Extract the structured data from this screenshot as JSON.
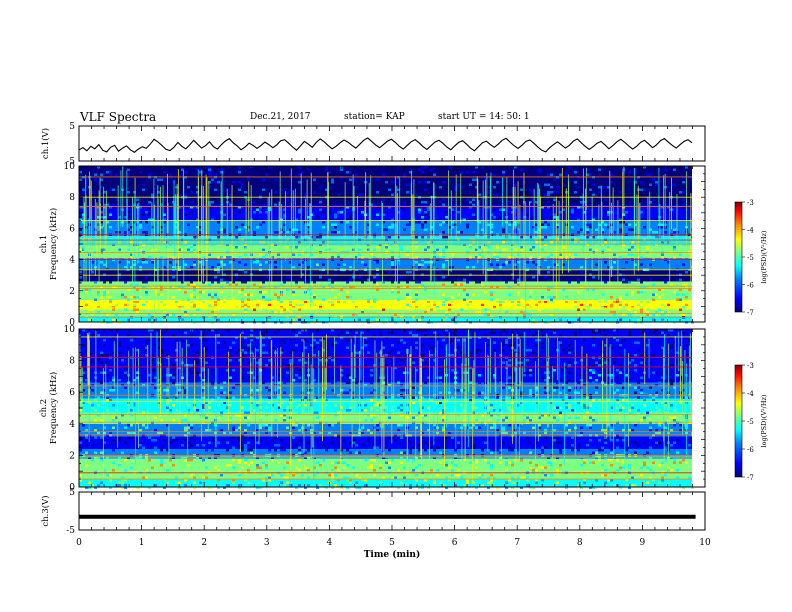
{
  "header": {
    "title": "VLF Spectra",
    "date": "Dec.21, 2017",
    "station": "station= KAP",
    "start": "start  UT =   14: 50: 1"
  },
  "chart_data": [
    {
      "type": "line",
      "panel": "ch1-waveform",
      "ylabel": "ch.1(V)",
      "ylim": [
        -5,
        5
      ],
      "yticks": [
        "5",
        "-5"
      ],
      "xlim": [
        0,
        10
      ],
      "series": [
        {
          "values": [
            -1.8,
            -1.2,
            -2.1,
            -0.8,
            -1.5,
            -0.3,
            -1.9,
            -2.4,
            -1.1,
            -0.5,
            -2.2,
            -1.3,
            -0.7,
            -1.8,
            -2.5,
            -1.6,
            -0.9,
            -1.4,
            -0.2,
            1.2,
            0.4,
            -0.6,
            -1.7,
            -2.0,
            -1.1,
            0.3,
            -0.8,
            -1.5,
            -0.4,
            0.9,
            -0.2,
            -1.3,
            -0.6,
            0.5,
            -0.9,
            -1.6,
            -0.3,
            0.7,
            1.4,
            0.2,
            -0.7,
            -1.8,
            -1.0,
            0.1,
            -0.5,
            -1.4,
            -0.6,
            0.4,
            -0.3,
            -1.2,
            -0.4,
            0.8,
            1.1,
            0.1,
            -1.0,
            -1.9,
            -0.7,
            0.6,
            -0.2,
            -1.1,
            0.3,
            1.3,
            0.5,
            -0.6,
            -1.5,
            -0.8,
            0.2,
            1.0,
            0.4,
            -0.5,
            -1.3,
            -0.2,
            0.9,
            1.6,
            0.6,
            -0.4,
            -1.2,
            -0.3,
            0.7,
            1.2,
            0.3,
            -0.8,
            -1.6,
            -0.5,
            0.5,
            1.1,
            0.2,
            -0.9,
            -1.7,
            -0.6,
            0.4,
            0.9,
            0.1,
            -1.0,
            -1.8,
            -0.7,
            0.3,
            0.8,
            -0.2,
            -1.3,
            -2.1,
            -0.9,
            0.2,
            0.7,
            -0.3,
            -1.1,
            -0.2,
            0.9,
            1.5,
            0.4,
            -0.6,
            -1.4,
            -0.5,
            0.6,
            1.0,
            0.1,
            -1.0,
            -1.9,
            -2.4,
            -1.2,
            -0.3,
            0.5,
            -0.4,
            -1.3,
            -0.5,
            0.7,
            1.3,
            0.2,
            -0.8,
            -1.7,
            -0.9,
            0.1,
            0.6,
            -0.4,
            -1.5,
            -0.6,
            0.5,
            1.2,
            0.3,
            -0.7,
            -1.6,
            -0.8,
            0.3,
            0.9,
            -0.1,
            -1.2,
            -0.4,
            0.8,
            1.4,
            0.4,
            -0.5,
            -1.3,
            -0.3,
            0.6,
            1.1,
            0.2
          ]
        }
      ]
    },
    {
      "type": "heatmap",
      "panel": "ch1-spectrogram",
      "ylabel": "ch.1\nFrequency  (kHz)",
      "ylim": [
        0,
        10
      ],
      "xlim": [
        0,
        10
      ],
      "yticks": [
        "0",
        "2",
        "4",
        "6",
        "8",
        "10"
      ],
      "colorbar": {
        "label": "log(PSD)(V²/Hz)",
        "range": [
          -7,
          -3
        ],
        "ticks": [
          "-3",
          "-4",
          "-5",
          "-6",
          "-7"
        ]
      },
      "bands": [
        {
          "from": 0.0,
          "to": 0.4,
          "level": -5.4
        },
        {
          "from": 0.4,
          "to": 0.8,
          "level": -4.9
        },
        {
          "from": 0.8,
          "to": 1.4,
          "level": -4.6
        },
        {
          "from": 1.4,
          "to": 2.0,
          "level": -5.0
        },
        {
          "from": 2.0,
          "to": 2.6,
          "level": -4.8
        },
        {
          "from": 2.6,
          "to": 3.4,
          "level": -6.6
        },
        {
          "from": 3.4,
          "to": 4.1,
          "level": -5.9
        },
        {
          "from": 4.1,
          "to": 4.9,
          "level": -5.2
        },
        {
          "from": 4.9,
          "to": 5.5,
          "level": -5.3
        },
        {
          "from": 5.5,
          "to": 6.5,
          "level": -6.1
        },
        {
          "from": 6.5,
          "to": 7.5,
          "level": -6.3
        },
        {
          "from": 7.5,
          "to": 10.0,
          "level": -6.6
        }
      ],
      "lines_khz": [
        0.3,
        0.55,
        0.9,
        1.2,
        2.15,
        2.3,
        3.0,
        3.35,
        4.0,
        4.45,
        5.0,
        5.25,
        5.6,
        6.5,
        7.4,
        8.0,
        9.3
      ]
    },
    {
      "type": "heatmap",
      "panel": "ch2-spectrogram",
      "ylabel": "ch.2\nFrequency  (kHz)",
      "ylim": [
        0,
        10
      ],
      "xlim": [
        0,
        10
      ],
      "yticks": [
        "0",
        "2",
        "4",
        "6",
        "8",
        "10"
      ],
      "colorbar": {
        "label": "log(PSD)(V²/Hz)",
        "range": [
          -7,
          -3
        ],
        "ticks": [
          "-3",
          "-4",
          "-5",
          "-6",
          "-7"
        ]
      },
      "bands": [
        {
          "from": 0.0,
          "to": 0.5,
          "level": -5.3
        },
        {
          "from": 0.5,
          "to": 1.0,
          "level": -5.0
        },
        {
          "from": 1.0,
          "to": 1.8,
          "level": -4.9
        },
        {
          "from": 1.8,
          "to": 2.4,
          "level": -5.8
        },
        {
          "from": 2.4,
          "to": 3.2,
          "level": -6.5
        },
        {
          "from": 3.2,
          "to": 4.0,
          "level": -5.7
        },
        {
          "from": 4.0,
          "to": 4.7,
          "level": -5.2
        },
        {
          "from": 4.7,
          "to": 5.6,
          "level": -5.4
        },
        {
          "from": 5.6,
          "to": 6.6,
          "level": -6.0
        },
        {
          "from": 6.6,
          "to": 7.6,
          "level": -6.2
        },
        {
          "from": 7.6,
          "to": 10.0,
          "level": -6.5
        }
      ],
      "lines_khz": [
        0.5,
        0.9,
        1.9,
        2.0,
        3.3,
        3.5,
        4.1,
        4.6,
        5.4,
        5.8,
        6.4,
        7.6,
        8.2,
        9.5
      ]
    },
    {
      "type": "line",
      "panel": "ch3-waveform",
      "ylabel": "ch.3(V)",
      "ylim": [
        -5,
        5
      ],
      "yticks": [
        "5",
        "-5"
      ],
      "xlim": [
        0,
        10
      ],
      "xlabel": "Time  (min)",
      "xticks": [
        "0",
        "1",
        "2",
        "3",
        "4",
        "5",
        "6",
        "7",
        "8",
        "9",
        "10"
      ],
      "series": [
        {
          "x": [
            0,
            9.85
          ],
          "values": [
            -1.5,
            -1.5
          ]
        }
      ]
    }
  ],
  "palette": [
    "#00007f",
    "#0000ff",
    "#007fff",
    "#00ffff",
    "#7fff7f",
    "#ffff00",
    "#ff7f00",
    "#ff0000",
    "#7f0000"
  ]
}
